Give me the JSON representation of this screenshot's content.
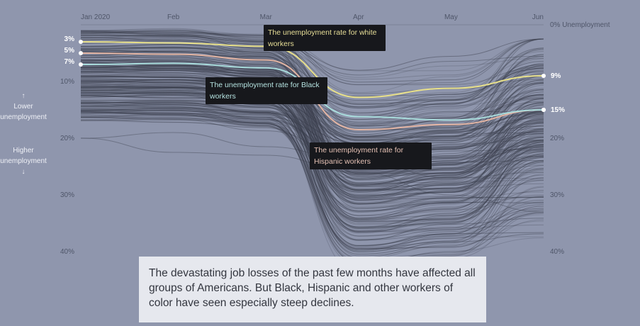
{
  "chart_data": {
    "type": "line",
    "title": "",
    "x": [
      "Jan 2020",
      "Feb",
      "Mar",
      "Apr",
      "May",
      "Jun"
    ],
    "x_tick_labels": [
      "Jan 2020",
      "Feb",
      "Mar",
      "Apr",
      "May",
      "Jun"
    ],
    "y_tick_labels": [
      "10%",
      "20%",
      "30%",
      "40%"
    ],
    "y_right_tick_labels": [
      "20%",
      "30%",
      "40%"
    ],
    "y_top_label": "0% Unemployment",
    "ylim": [
      0,
      40
    ],
    "y_inverted": true,
    "direction_labels": {
      "up_arrow": "↑",
      "lower": "Lower unemployment",
      "higher": "Higher unemployment",
      "down_arrow": "↓"
    },
    "background_series_note": "Hundreds of grey lines representing other groups of workers",
    "series": [
      {
        "name": "white workers",
        "color": "#e8e08a",
        "values": [
          3,
          3.2,
          3.8,
          12.8,
          11.2,
          9
        ],
        "start_label": "3%",
        "end_label": "9%",
        "annotation": "The unemployment rate for white workers",
        "annotation_color": "#e8df98"
      },
      {
        "name": "Hispanic workers",
        "color": "#e3b5a4",
        "values": [
          5,
          5.2,
          6.2,
          18.5,
          17.6,
          15
        ],
        "start_label": "5%",
        "end_label": "",
        "annotation": "The unemployment rate for Hispanic workers",
        "annotation_color": "#e6c2b5"
      },
      {
        "name": "Black workers",
        "color": "#a9dcdc",
        "values": [
          7,
          6.8,
          7.6,
          16.2,
          16.8,
          15
        ],
        "start_label": "7%",
        "end_label": "15%",
        "annotation": "The unemployment rate for Black workers",
        "annotation_color": "#b5e2e0"
      }
    ]
  },
  "caption": "The devastating job losses of the past few months have affected all groups of Americans. But Black, Hispanic and other workers of color have seen especially steep declines."
}
